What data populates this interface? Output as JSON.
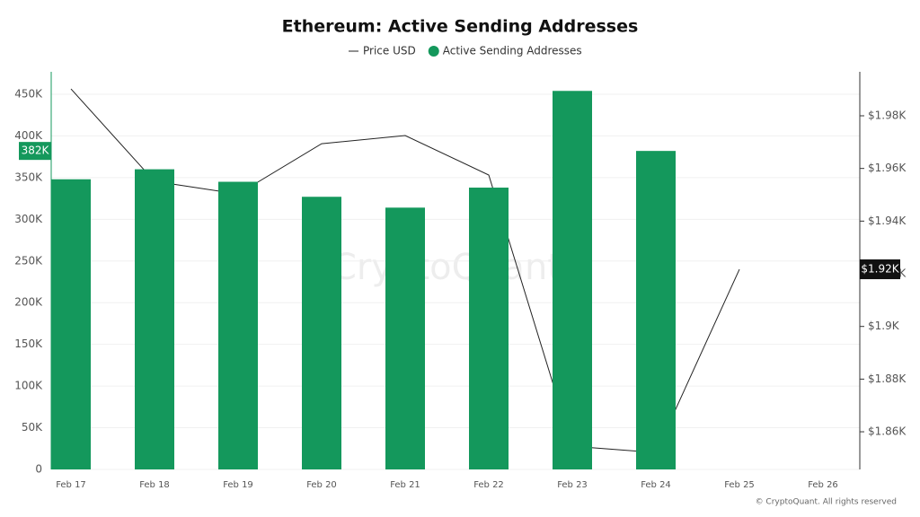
{
  "chart_data": {
    "type": "bar",
    "title": "Ethereum: Active Sending Addresses",
    "watermark": "CryptoQuant",
    "footer": "© CryptoQuant. All rights reserved",
    "categories": [
      "Feb 17",
      "Feb 18",
      "Feb 19",
      "Feb 20",
      "Feb 21",
      "Feb 22",
      "Feb 23",
      "Feb 24",
      "Feb 25",
      "Feb 26"
    ],
    "series": [
      {
        "name": "Price USD",
        "type": "line",
        "axis": "y2",
        "color": "#222222",
        "values": [
          1.9902,
          1.9551,
          1.9503,
          1.9694,
          1.9725,
          1.9575,
          1.8545,
          1.8521,
          1.9217,
          null
        ],
        "value_labels": [
          null,
          null,
          null,
          null,
          null,
          null,
          null,
          null,
          "$1.92K",
          null
        ]
      },
      {
        "name": "Active Sending Addresses",
        "type": "bar",
        "color": "#14985c",
        "values": [
          348000,
          360000,
          345000,
          327000,
          314000,
          338000,
          454000,
          382000,
          null,
          null
        ],
        "value_labels": [
          null,
          null,
          null,
          null,
          null,
          null,
          null,
          "382K",
          null,
          null
        ]
      }
    ],
    "ylim": [
      0,
      476900
    ],
    "yticks": [
      0,
      {
        "value": 50000,
        "label": "50K"
      },
      {
        "value": 100000,
        "label": "100K"
      },
      {
        "value": 150000,
        "label": "150K"
      },
      {
        "value": 200000,
        "label": "200K"
      },
      {
        "value": 250000,
        "label": "250K"
      },
      {
        "value": 300000,
        "label": "300K"
      },
      {
        "value": 350000,
        "label": "350K"
      },
      {
        "value": 400000,
        "label": "400K"
      },
      {
        "value": 450000,
        "label": "450K"
      }
    ],
    "y2lim": [
      1.8457,
      1.9967
    ],
    "y2ticks": [
      {
        "value": 1.86,
        "label": "$1.86K"
      },
      {
        "value": 1.88,
        "label": "$1.88K"
      },
      {
        "value": 1.9,
        "label": "$1.9K"
      },
      {
        "value": 1.92,
        "label": "$1.92K"
      },
      {
        "value": 1.94,
        "label": "$1.94K"
      },
      {
        "value": 1.96,
        "label": "$1.96K"
      },
      {
        "value": 1.98,
        "label": "$1.98K"
      }
    ],
    "grid": true
  }
}
